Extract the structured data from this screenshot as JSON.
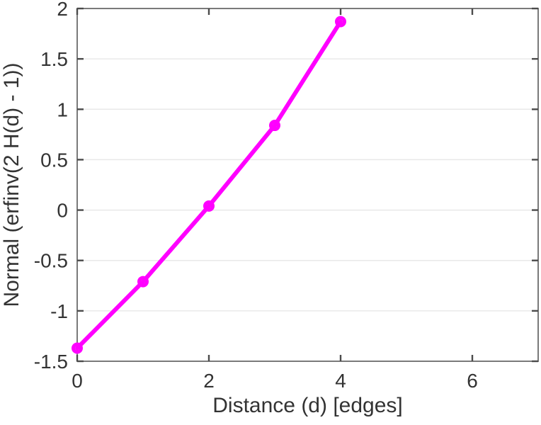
{
  "chart_data": {
    "type": "line",
    "xlabel": "Distance (d) [edges]",
    "ylabel": "Normal (erfinv(2 H(d) - 1))",
    "x": [
      0,
      1,
      2,
      3,
      4
    ],
    "y": [
      -1.37,
      -0.71,
      0.04,
      0.84,
      1.87
    ],
    "xlim": [
      0,
      7
    ],
    "ylim": [
      -1.5,
      2
    ],
    "xticks": [
      0,
      2,
      4,
      6
    ],
    "yticks": [
      -1.5,
      -1,
      -0.5,
      0,
      0.5,
      1,
      1.5,
      2
    ],
    "grid": "horizontal",
    "legend": "none",
    "marker": "open-circle",
    "line_color": "#ff00ff",
    "axis_color": "#7a7a7a",
    "tick_color": "#4b4b4b",
    "grid_color": "#e9e9e9",
    "text_color": "#333333",
    "background_color": "#ffffff"
  }
}
